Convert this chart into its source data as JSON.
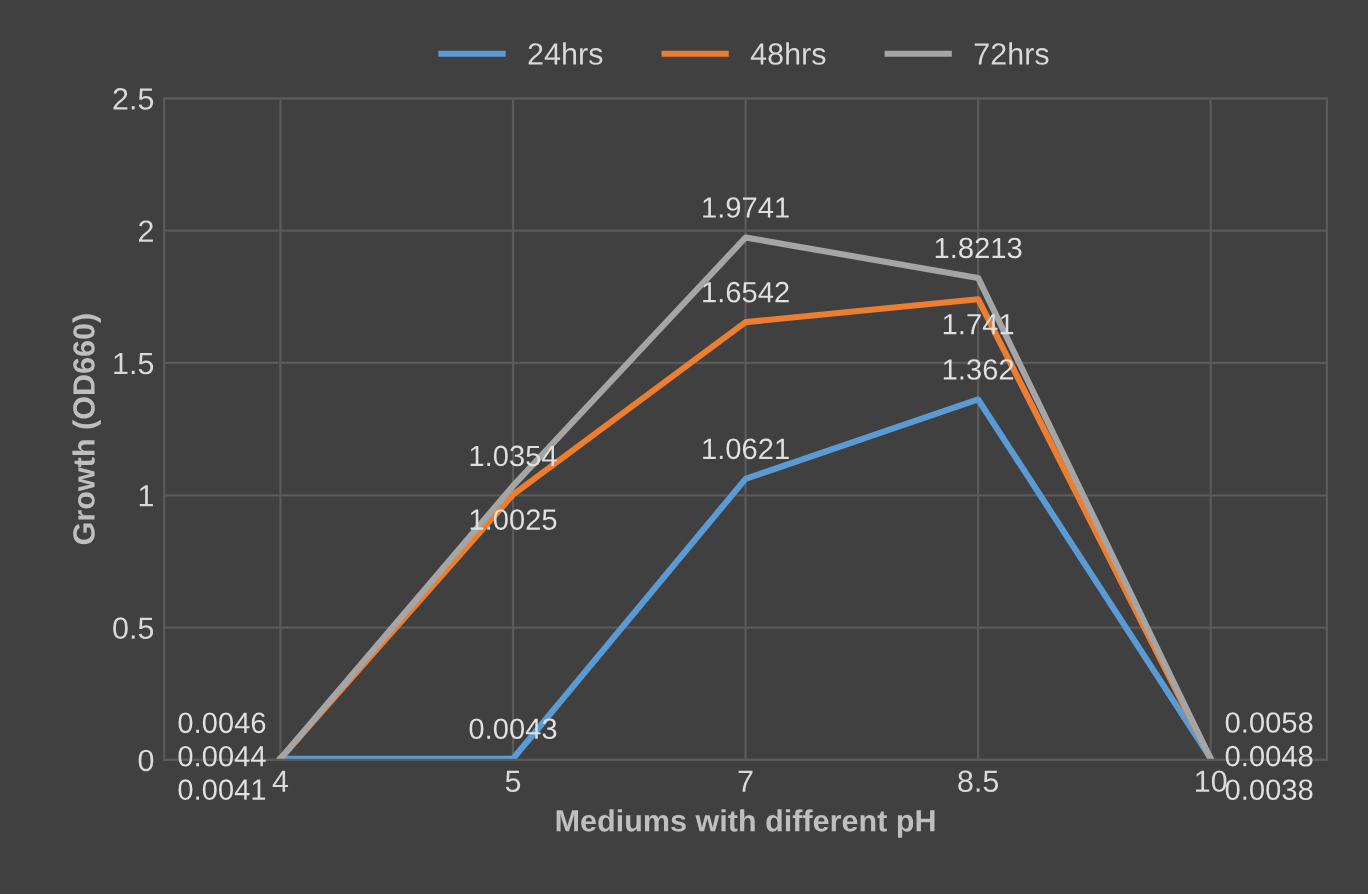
{
  "chart_data": {
    "type": "line",
    "xlabel": "Mediums with different pH",
    "ylabel": "Growth (OD660)",
    "categories": [
      "4",
      "5",
      "7",
      "8.5",
      "10"
    ],
    "series": [
      {
        "name": "24hrs",
        "color": "#5b9bd5",
        "values": [
          0.0041,
          0.0043,
          1.0621,
          1.362,
          0.0058
        ]
      },
      {
        "name": "48hrs",
        "color": "#ed7d31",
        "values": [
          0.0046,
          1.0025,
          1.6542,
          1.741,
          0.0048
        ]
      },
      {
        "name": "72hrs",
        "color": "#a5a5a5",
        "values": [
          0.0044,
          1.0354,
          1.9741,
          1.8213,
          0.0038
        ]
      }
    ],
    "ylim": [
      0,
      2.5
    ],
    "yticks": [
      0,
      0.5,
      1,
      1.5,
      2,
      2.5
    ],
    "grid": true,
    "legend": "top",
    "data_labels": true,
    "marker": "none",
    "line_style": "solid"
  }
}
